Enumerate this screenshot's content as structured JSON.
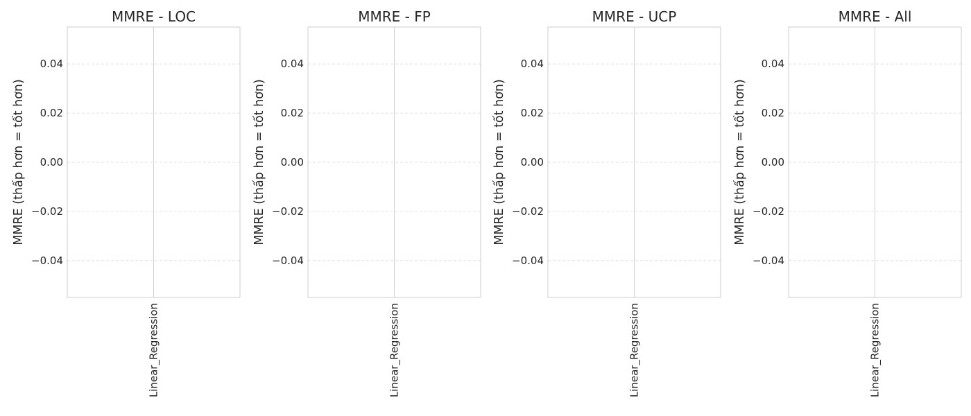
{
  "chart_data": [
    {
      "type": "bar",
      "title": "MMRE - LOC",
      "xlabel": "",
      "ylabel": "MMRE (thấp hơn = tốt hơn)",
      "categories": [
        "Linear_Regression"
      ],
      "values": [
        null
      ],
      "ylim": [
        -0.055,
        0.055
      ],
      "yticks": [
        0.04,
        0.02,
        0.0,
        -0.02,
        -0.04
      ],
      "ytick_labels": [
        "0.04",
        "0.02",
        "0.00",
        "−0.02",
        "−0.04"
      ],
      "grid": true
    },
    {
      "type": "bar",
      "title": "MMRE - FP",
      "xlabel": "",
      "ylabel": "MMRE (thấp hơn = tốt hơn)",
      "categories": [
        "Linear_Regression"
      ],
      "values": [
        null
      ],
      "ylim": [
        -0.055,
        0.055
      ],
      "yticks": [
        0.04,
        0.02,
        0.0,
        -0.02,
        -0.04
      ],
      "ytick_labels": [
        "0.04",
        "0.02",
        "0.00",
        "−0.02",
        "−0.04"
      ],
      "grid": true
    },
    {
      "type": "bar",
      "title": "MMRE - UCP",
      "xlabel": "",
      "ylabel": "MMRE (thấp hơn = tốt hơn)",
      "categories": [
        "Linear_Regression"
      ],
      "values": [
        null
      ],
      "ylim": [
        -0.055,
        0.055
      ],
      "yticks": [
        0.04,
        0.02,
        0.0,
        -0.02,
        -0.04
      ],
      "ytick_labels": [
        "0.04",
        "0.02",
        "0.00",
        "−0.02",
        "−0.04"
      ],
      "grid": true
    },
    {
      "type": "bar",
      "title": "MMRE - All",
      "xlabel": "",
      "ylabel": "MMRE (thấp hơn = tốt hơn)",
      "categories": [
        "Linear_Regression"
      ],
      "values": [
        null
      ],
      "ylim": [
        -0.055,
        0.055
      ],
      "yticks": [
        0.04,
        0.02,
        0.0,
        -0.02,
        -0.04
      ],
      "ytick_labels": [
        "0.04",
        "0.02",
        "0.00",
        "−0.02",
        "−0.04"
      ],
      "grid": true
    }
  ],
  "colors": {
    "background": "#ffffff",
    "frame": "#cccccc",
    "grid": "#d9d9d9",
    "category_line": "#d0d0d0",
    "text": "#262626"
  }
}
